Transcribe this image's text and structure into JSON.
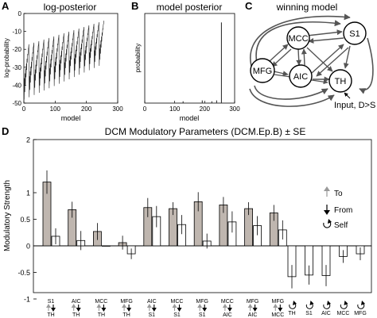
{
  "chart_data": [
    {
      "panel_letter": "A",
      "type": "line",
      "title": "log-posterior",
      "xlabel": "model",
      "ylabel": "log-probability",
      "xlim": [
        0,
        300
      ],
      "ylim": [
        -50,
        0
      ],
      "xticks": [
        "0",
        "100",
        "200",
        "300"
      ],
      "yticks": [
        "-50",
        "-40",
        "-30",
        "-20",
        "-10",
        "0"
      ],
      "n_models": 256,
      "waveform": {
        "period_models": 16,
        "min_start": -48,
        "min_end": -28,
        "max_start": -18,
        "max_end": -4
      }
    },
    {
      "panel_letter": "B",
      "type": "bar",
      "title": "model posterior",
      "xlabel": "model",
      "ylabel": "probability",
      "xlim": [
        0,
        300
      ],
      "ylim": [
        0,
        1
      ],
      "xticks": [
        "0",
        "100",
        "200",
        "300"
      ],
      "x": [
        128,
        192,
        224,
        240,
        256
      ],
      "values": [
        0.02,
        0.03,
        0.02,
        0.03,
        0.9
      ]
    },
    {
      "panel_letter": "D",
      "type": "bar",
      "title": "DCM Modulatory Parameters (DCM.Ep.B) ± SE",
      "ylabel": "Modulatory Strength",
      "ylim": [
        -1,
        2
      ],
      "yticks": [
        "-1",
        "-0.5",
        "0",
        "0.5",
        "1",
        "2"
      ],
      "yticks_values": [
        -1,
        -0.5,
        0,
        0.5,
        1,
        2
      ],
      "groups": [
        {
          "top": "S1",
          "bottom": "TH",
          "gray": 1.2,
          "gray_se": 0.22,
          "white": 0.18,
          "white_se": 0.15
        },
        {
          "top": "AIC",
          "bottom": "TH",
          "gray": 0.68,
          "gray_se": 0.15,
          "white": 0.1,
          "white_se": 0.18
        },
        {
          "top": "MCC",
          "bottom": "TH",
          "gray": 0.27,
          "gray_se": 0.16,
          "white": 0.0,
          "white_se": 0.0
        },
        {
          "top": "MFG",
          "bottom": "TH",
          "gray": 0.06,
          "gray_se": 0.13,
          "white": -0.15,
          "white_se": 0.1
        },
        {
          "top": "AIC",
          "bottom": "S1",
          "gray": 0.72,
          "gray_se": 0.18,
          "white": 0.55,
          "white_se": 0.2
        },
        {
          "top": "MCC",
          "bottom": "S1",
          "gray": 0.7,
          "gray_se": 0.12,
          "white": 0.4,
          "white_se": 0.18
        },
        {
          "top": "MFG",
          "bottom": "S1",
          "gray": 0.83,
          "gray_se": 0.18,
          "white": 0.09,
          "white_se": 0.14
        },
        {
          "top": "MCC",
          "bottom": "AIC",
          "gray": 0.77,
          "gray_se": 0.15,
          "white": 0.45,
          "white_se": 0.2
        },
        {
          "top": "MFG",
          "bottom": "AIC",
          "gray": 0.7,
          "gray_se": 0.12,
          "white": 0.38,
          "white_se": 0.18
        },
        {
          "top": "MFG",
          "bottom": "MCC",
          "gray": 0.62,
          "gray_se": 0.15,
          "white": 0.3,
          "white_se": 0.18
        }
      ],
      "self_groups": [
        {
          "label": "TH",
          "value": -0.58,
          "se": 0.22
        },
        {
          "label": "S1",
          "value": -0.55,
          "se": 0.18
        },
        {
          "label": "AIC",
          "value": -0.56,
          "se": 0.2
        },
        {
          "label": "MCC",
          "value": -0.2,
          "se": 0.12
        },
        {
          "label": "MFG",
          "value": -0.15,
          "se": 0.12
        }
      ],
      "legend": {
        "to": "To",
        "from": "From",
        "self": "Self"
      },
      "colors": {
        "gray_bar": "#bfb6af",
        "white_bar": "#ffffff",
        "to_arrow": "#9a9a9a",
        "from_arrow": "#000000"
      }
    }
  ],
  "diagram": {
    "panel_letter": "C",
    "title": "winning model",
    "nodes": [
      {
        "id": "MCC",
        "label": "MCC"
      },
      {
        "id": "S1",
        "label": "S1"
      },
      {
        "id": "MFG",
        "label": "MFG"
      },
      {
        "id": "AIC",
        "label": "AIC"
      },
      {
        "id": "TH",
        "label": "TH"
      }
    ],
    "input_label": "Input, D>S"
  }
}
